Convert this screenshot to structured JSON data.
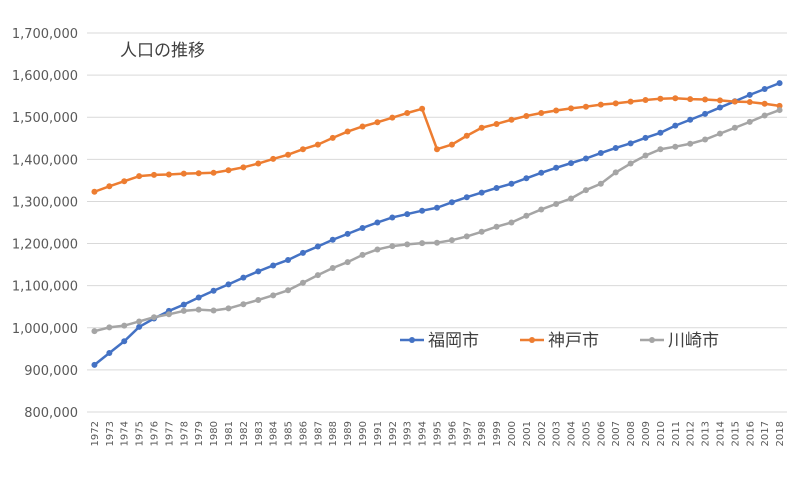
{
  "chart_data": {
    "type": "line",
    "title": "人口の推移",
    "xlabel": "",
    "ylabel": "",
    "ylim": [
      800000,
      1700000
    ],
    "yticks": [
      800000,
      900000,
      1000000,
      1100000,
      1200000,
      1300000,
      1400000,
      1500000,
      1600000,
      1700000
    ],
    "ytick_labels": [
      "800,000",
      "900,000",
      "1,000,000",
      "1,100,000",
      "1,200,000",
      "1,300,000",
      "1,400,000",
      "1,500,000",
      "1,600,000",
      "1,700,000"
    ],
    "grid": "horizontal",
    "legend_position": "center-right",
    "x": [
      "1972",
      "1973",
      "1974",
      "1975",
      "1976",
      "1977",
      "1978",
      "1979",
      "1980",
      "1981",
      "1982",
      "1983",
      "1984",
      "1985",
      "1986",
      "1987",
      "1988",
      "1989",
      "1990",
      "1991",
      "1992",
      "1993",
      "1994",
      "1995",
      "1996",
      "1997",
      "1998",
      "1999",
      "2000",
      "2001",
      "2002",
      "2003",
      "2004",
      "2005",
      "2006",
      "2007",
      "2008",
      "2009",
      "2010",
      "2011",
      "2012",
      "2013",
      "2014",
      "2015",
      "2016",
      "2017",
      "2018"
    ],
    "series": [
      {
        "name": "福岡市",
        "color": "#4472c4",
        "values": [
          912000,
          940000,
          968000,
          1002000,
          1022000,
          1040000,
          1055000,
          1072000,
          1088000,
          1103000,
          1119000,
          1134000,
          1148000,
          1161000,
          1178000,
          1193000,
          1209000,
          1223000,
          1237000,
          1250000,
          1262000,
          1270000,
          1278000,
          1285000,
          1298000,
          1310000,
          1321000,
          1332000,
          1342000,
          1355000,
          1368000,
          1380000,
          1391000,
          1402000,
          1415000,
          1427000,
          1438000,
          1451000,
          1463000,
          1480000,
          1494000,
          1508000,
          1523000,
          1538000,
          1553000,
          1567000,
          1581000
        ]
      },
      {
        "name": "神戸市",
        "color": "#ed7d31",
        "values": [
          1323000,
          1336000,
          1348000,
          1360000,
          1363000,
          1364000,
          1366000,
          1367000,
          1368000,
          1374000,
          1381000,
          1390000,
          1401000,
          1411000,
          1424000,
          1435000,
          1451000,
          1466000,
          1478000,
          1488000,
          1499000,
          1510000,
          1520000,
          1424000,
          1435000,
          1456000,
          1475000,
          1484000,
          1494000,
          1503000,
          1510000,
          1516000,
          1521000,
          1525000,
          1530000,
          1533000,
          1537000,
          1541000,
          1544000,
          1545000,
          1543000,
          1542000,
          1540000,
          1537000,
          1536000,
          1532000,
          1527000
        ]
      },
      {
        "name": "川崎市",
        "color": "#a5a5a5",
        "values": [
          992000,
          1001000,
          1005000,
          1015000,
          1025000,
          1032000,
          1040000,
          1043000,
          1041000,
          1046000,
          1056000,
          1066000,
          1077000,
          1089000,
          1107000,
          1125000,
          1142000,
          1156000,
          1173000,
          1186000,
          1194000,
          1198000,
          1201000,
          1202000,
          1208000,
          1217000,
          1228000,
          1240000,
          1250000,
          1266000,
          1281000,
          1294000,
          1307000,
          1327000,
          1342000,
          1369000,
          1390000,
          1409000,
          1424000,
          1430000,
          1437000,
          1447000,
          1461000,
          1475000,
          1489000,
          1504000,
          1517000
        ]
      }
    ]
  }
}
